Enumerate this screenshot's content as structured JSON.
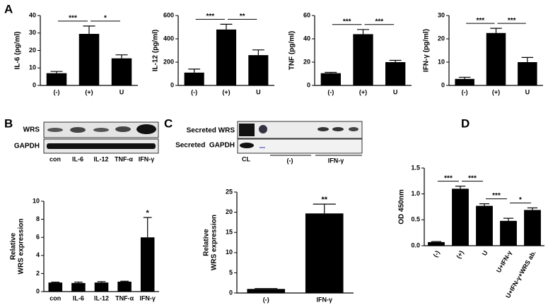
{
  "panel_labels": [
    "A",
    "B",
    "C",
    "D"
  ],
  "blots": {
    "B": {
      "rows": [
        "WRS",
        "GAPDH"
      ],
      "lanes": [
        "con",
        "IL-6",
        "IL-12",
        "TNF-α",
        "IFN-γ"
      ]
    },
    "C": {
      "rows": [
        "Secreted WRS",
        "Secreted  GAPDH"
      ],
      "lanes": [
        "CL",
        "(-)",
        "IFN-γ"
      ]
    }
  },
  "chart_data": [
    {
      "type": "bar",
      "ylabel": [
        "IL-6 (pg/ml)"
      ],
      "categories": [
        "(-)",
        "(+)",
        "U"
      ],
      "values": [
        7,
        29.5,
        15.5
      ],
      "errors": [
        1,
        4.5,
        2
      ],
      "color": "#000000",
      "ylim": [
        0,
        40
      ],
      "yticks": [
        0,
        10,
        20,
        30,
        40
      ],
      "annotations": [
        {
          "text": "***",
          "between": [
            "(-)",
            "(+)"
          ]
        },
        {
          "text": "*",
          "between": [
            "(+)",
            "U"
          ]
        }
      ]
    },
    {
      "type": "bar",
      "ylabel": [
        "IL-12 (pg/ml)"
      ],
      "categories": [
        "(-)",
        "(+)",
        "U"
      ],
      "values": [
        110,
        480,
        260
      ],
      "errors": [
        30,
        45,
        45
      ],
      "color": "#000000",
      "ylim": [
        0,
        600
      ],
      "yticks": [
        0,
        200,
        400,
        600
      ],
      "annotations": [
        {
          "text": "***",
          "between": [
            "(-)",
            "(+)"
          ]
        },
        {
          "text": "**",
          "between": [
            "(+)",
            "U"
          ]
        }
      ]
    },
    {
      "type": "bar",
      "ylabel": [
        "TNF (pg/ml)"
      ],
      "categories": [
        "(-)",
        "(+)",
        "U"
      ],
      "values": [
        10.5,
        44,
        20
      ],
      "errors": [
        0.7,
        4,
        1.5
      ],
      "color": "#000000",
      "ylim": [
        0,
        60
      ],
      "yticks": [
        0,
        20,
        40,
        60
      ],
      "annotations": [
        {
          "text": "***",
          "between": [
            "(-)",
            "(+)"
          ]
        },
        {
          "text": "***",
          "between": [
            "(+)",
            "U"
          ]
        }
      ]
    },
    {
      "type": "bar",
      "ylabel": [
        "IFN-γ (pg/ml)"
      ],
      "categories": [
        "(-)",
        "(+)",
        "U"
      ],
      "values": [
        2.8,
        22.5,
        10
      ],
      "errors": [
        0.7,
        2,
        2
      ],
      "color": "#000000",
      "ylim": [
        0,
        30
      ],
      "yticks": [
        0,
        10,
        20,
        30
      ],
      "annotations": [
        {
          "text": "***",
          "between": [
            "(-)",
            "(+)"
          ]
        },
        {
          "text": "***",
          "between": [
            "(+)",
            "U"
          ]
        }
      ]
    },
    {
      "type": "bar",
      "ylabel": [
        "Relative",
        "WRS expression"
      ],
      "categories": [
        "con",
        "IL-6",
        "IL-12",
        "TNF-α",
        "IFN-γ"
      ],
      "values": [
        1,
        0.95,
        1,
        1.1,
        6
      ],
      "errors": [
        0.05,
        0.1,
        0.1,
        0.05,
        2.2
      ],
      "color": "#000000",
      "ylim": [
        0,
        10
      ],
      "yticks": [
        0,
        2,
        4,
        6,
        8,
        10
      ],
      "annotations": [
        {
          "text": "*",
          "category": "IFN-γ"
        }
      ]
    },
    {
      "type": "bar",
      "ylabel": [
        "Relative",
        "WRS expression"
      ],
      "categories": [
        "(-)",
        "IFN-γ"
      ],
      "values": [
        1,
        19.7
      ],
      "errors": [
        0.1,
        2.3
      ],
      "color": "#000000",
      "ylim": [
        0,
        25
      ],
      "yticks": [
        0,
        5,
        10,
        15,
        20,
        25
      ],
      "annotations": [
        {
          "text": "**",
          "category": "IFN-γ"
        }
      ]
    },
    {
      "type": "bar",
      "ylabel": [
        "OD 450nm"
      ],
      "categories": [
        "(-)",
        "(+)",
        "U",
        "U+IFN-γ",
        "U+IFN-γ+WRS ab."
      ],
      "values": [
        0.07,
        1.1,
        0.77,
        0.48,
        0.69
      ],
      "errors": [
        0.01,
        0.05,
        0.04,
        0.05,
        0.04
      ],
      "color": "#000000",
      "ylim": [
        0,
        1.5
      ],
      "yticks": [
        {
          "value": 0,
          "label": "0.0"
        },
        {
          "value": 0.5,
          "label": "0.5"
        },
        {
          "value": 1,
          "label": "1.0"
        },
        {
          "value": 1.5,
          "label": "1.5"
        }
      ],
      "annotations": [
        {
          "text": "***",
          "between": [
            "(-)",
            "(+)"
          ]
        },
        {
          "text": "***",
          "between": [
            "(+)",
            "U"
          ]
        },
        {
          "text": "***",
          "between": [
            "U",
            "U+IFN-γ"
          ]
        },
        {
          "text": "*",
          "between": [
            "U+IFN-γ",
            "U+IFN-γ+WRS ab."
          ]
        }
      ]
    }
  ]
}
